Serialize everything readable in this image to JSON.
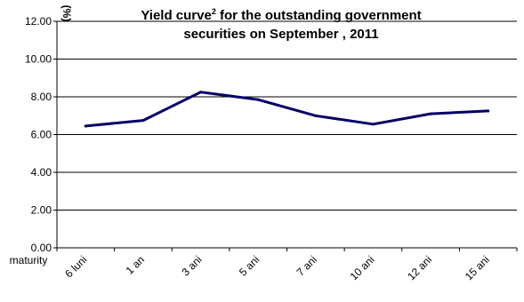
{
  "chart_data": {
    "type": "line",
    "title_main": "Yield curve",
    "title_sup": "2",
    "title_rest": " for the outstanding government",
    "title_line2": "securities on September , 2011",
    "ylabel": "(%)",
    "xlabel": "maturity",
    "ylim": [
      0,
      12
    ],
    "yticks": [
      "0.00",
      "2.00",
      "4.00",
      "6.00",
      "8.00",
      "10.00",
      "12.00"
    ],
    "categories": [
      "6 luni",
      "1 an",
      "3 ani",
      "5 ani",
      "7 ani",
      "10 ani",
      "12 ani",
      "15 ani"
    ],
    "series": [
      {
        "values": [
          6.45,
          6.75,
          8.25,
          7.85,
          7.0,
          6.55,
          7.1,
          7.25
        ],
        "color": "#000066"
      }
    ],
    "grid": "horizontal",
    "legend": "none"
  }
}
